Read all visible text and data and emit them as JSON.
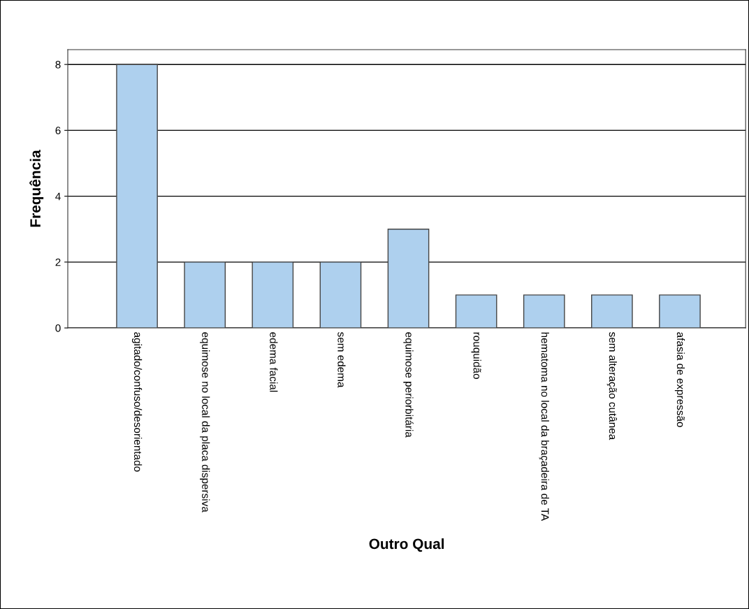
{
  "chart_data": {
    "type": "bar",
    "xlabel": "Outro Qual",
    "ylabel": "Frequência",
    "categories": [
      "agitado/confuso/desorientado",
      "equimose no local da placa dispersiva",
      "edema facial",
      "sem edema",
      "equimose periorbitária",
      "rouquidão",
      "hematoma no local da braçadeira de TA",
      "sem alteração cutânea",
      "afasia de expressão"
    ],
    "values": [
      8,
      2,
      2,
      2,
      3,
      1,
      1,
      1,
      1
    ],
    "color": "#aed0ee",
    "ylim": [
      0,
      8.45
    ],
    "yticks": [
      0,
      2,
      4,
      6,
      8
    ],
    "grid": "y",
    "legend": false
  }
}
